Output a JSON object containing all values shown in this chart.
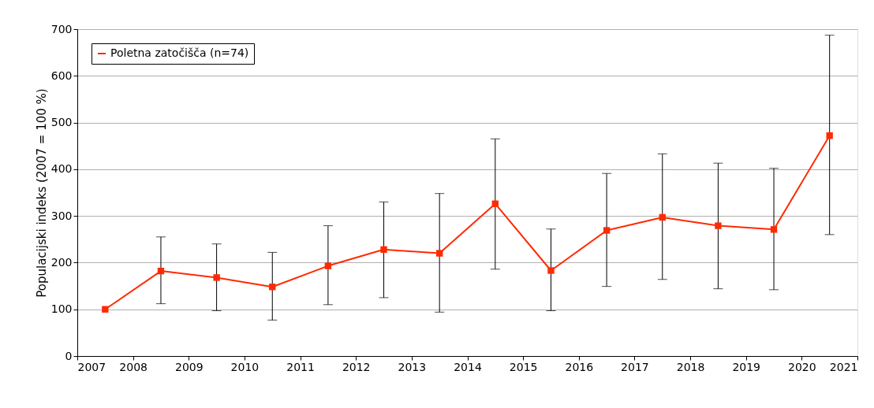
{
  "chart_data": {
    "type": "line",
    "ylabel": "Populacijski indeks (2007 = 100 %)",
    "x": [
      2007.5,
      2008.5,
      2009.5,
      2010.5,
      2011.5,
      2012.5,
      2013.5,
      2014.5,
      2015.5,
      2016.5,
      2017.5,
      2018.5,
      2019.5,
      2020.5
    ],
    "series": [
      {
        "name": "Poletna zatočišča (n=74)",
        "color": "#ff2a00",
        "values": [
          100,
          182,
          168,
          148,
          193,
          228,
          220,
          326,
          183,
          269,
          297,
          279,
          271,
          472
        ],
        "errors": [
          null,
          [
            112,
            255
          ],
          [
            97,
            240
          ],
          [
            77,
            222
          ],
          [
            110,
            279
          ],
          [
            125,
            330
          ],
          [
            94,
            348
          ],
          [
            186,
            465
          ],
          [
            97,
            272
          ],
          [
            149,
            391
          ],
          [
            164,
            433
          ],
          [
            144,
            413
          ],
          [
            142,
            402
          ],
          [
            260,
            687
          ]
        ]
      }
    ],
    "xlim": [
      2007,
      2021
    ],
    "xticks": [
      2007,
      2008,
      2009,
      2010,
      2011,
      2012,
      2013,
      2014,
      2015,
      2016,
      2017,
      2018,
      2019,
      2020,
      2021
    ],
    "ylim": [
      0,
      700
    ],
    "yticks": [
      0,
      100,
      200,
      300,
      400,
      500,
      600,
      700
    ],
    "grid": "y",
    "legend": "top left",
    "marker": "square",
    "line_style": "solid"
  }
}
